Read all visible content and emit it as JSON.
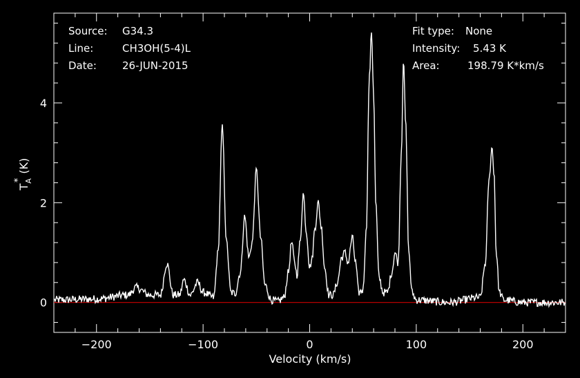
{
  "header": {
    "source_label": "Source:",
    "source_value": "G34.3",
    "line_label": "Line:",
    "line_value": "CH3OH(5-4)L",
    "date_label": "Date:",
    "date_value": "26-JUN-2015",
    "fit_label": "Fit type:",
    "fit_value": "None",
    "intensity_label": "Intensity:",
    "intensity_value": "5.43 K",
    "area_label": "Area:",
    "area_value": "198.79 K*km/s"
  },
  "colors": {
    "background": "#000000",
    "spectrum": "#ffffff",
    "baseline": "#cc0000",
    "axes": "#ffffff"
  },
  "chart_data": {
    "type": "line",
    "title": "",
    "xlabel": "Velocity (km/s)",
    "ylabel_main": "T",
    "ylabel_sub": "A",
    "ylabel_sup": "*",
    "ylabel_unit": "(K)",
    "xlim": [
      -240,
      240
    ],
    "ylim": [
      -0.6,
      5.8
    ],
    "xticks": [
      -200,
      -100,
      0,
      100,
      200
    ],
    "xtick_labels": [
      "−200",
      "−100",
      "0",
      "100",
      "200"
    ],
    "yticks": [
      0,
      2,
      4
    ],
    "ytick_labels": [
      "0",
      "2",
      "4"
    ],
    "baseline_value": 0,
    "grid": false,
    "legend": "none",
    "series": [
      {
        "x": [
          -240,
          -200,
          -170,
          -163,
          -150,
          -140,
          -134,
          -128,
          -122,
          -118,
          -112,
          -105,
          -100,
          -90,
          -86,
          -82,
          -78,
          -74,
          -70,
          -65,
          -61,
          -57,
          -54,
          -50,
          -46,
          -42,
          -36,
          -30,
          -24,
          -20,
          -17,
          -14,
          -12,
          -9,
          -6,
          -3,
          0,
          2,
          5,
          8,
          11,
          14,
          18,
          22,
          26,
          30,
          33,
          36,
          40,
          43,
          46,
          50,
          53,
          56,
          58,
          60,
          62,
          65,
          69,
          73,
          77,
          80,
          83,
          86,
          88,
          90,
          93,
          96,
          100,
          130,
          160,
          165,
          168,
          171,
          173,
          175,
          178,
          182,
          200,
          240
        ],
        "y": [
          0.05,
          0.07,
          0.15,
          0.3,
          0.15,
          0.15,
          0.78,
          0.15,
          0.15,
          0.45,
          0.15,
          0.4,
          0.2,
          0.1,
          1.0,
          3.5,
          1.2,
          0.2,
          0.18,
          0.6,
          1.72,
          0.9,
          1.2,
          2.65,
          1.3,
          0.35,
          0.05,
          0.02,
          0.1,
          0.6,
          1.2,
          0.8,
          0.55,
          1.2,
          2.18,
          1.4,
          0.7,
          0.85,
          1.5,
          2.0,
          1.5,
          0.7,
          0.15,
          0.15,
          0.4,
          0.9,
          1.0,
          0.8,
          1.3,
          0.8,
          0.2,
          0.25,
          1.4,
          4.5,
          5.43,
          4.2,
          2.0,
          0.5,
          0.2,
          0.2,
          0.6,
          1.0,
          0.8,
          3.0,
          4.9,
          3.6,
          1.0,
          0.2,
          0.05,
          0.0,
          0.1,
          0.8,
          2.4,
          3.1,
          2.6,
          1.0,
          0.2,
          0.05,
          0.0,
          0.0
        ]
      }
    ]
  }
}
